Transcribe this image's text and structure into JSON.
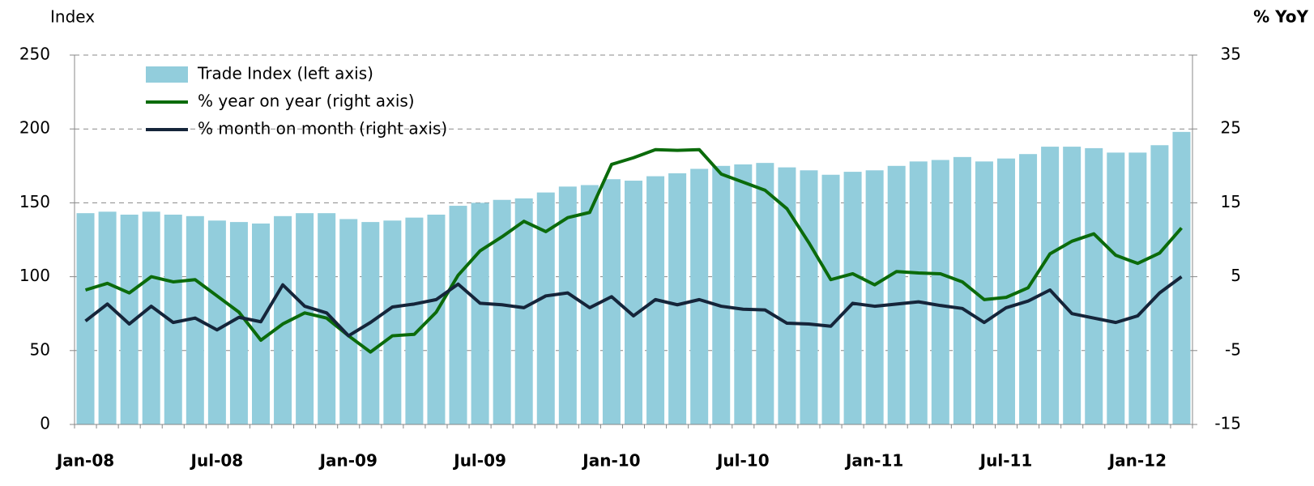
{
  "chart_data": {
    "type": "bar_line",
    "ylabel": "Index",
    "y2label": "% YoY",
    "categories": [
      "Jan-08",
      null,
      null,
      null,
      null,
      null,
      "Jul-08",
      null,
      null,
      null,
      null,
      null,
      "Jan-09",
      null,
      null,
      null,
      null,
      null,
      "Jul-09",
      null,
      null,
      null,
      null,
      null,
      "Jan-10",
      null,
      null,
      null,
      null,
      null,
      "Jul-10",
      null,
      null,
      null,
      null,
      null,
      "Jan-11",
      null,
      null,
      null,
      null,
      null,
      "Jul-11",
      null,
      null,
      null,
      null,
      null,
      "Jan-12",
      null,
      null
    ],
    "series": [
      {
        "name": "Trade Index (left axis)",
        "kind": "bar",
        "color": "#92cddc",
        "values": [
          143,
          144,
          142,
          144,
          142,
          141,
          138,
          137,
          136,
          141,
          143,
          143,
          139,
          137,
          138,
          140,
          142,
          148,
          150,
          152,
          153,
          157,
          161,
          162,
          166,
          165,
          168,
          170,
          173,
          175,
          176,
          177,
          174,
          172,
          169,
          171,
          172,
          175,
          178,
          179,
          181,
          178,
          180,
          183,
          188,
          188,
          187,
          184,
          184,
          189,
          198
        ]
      },
      {
        "name": "% year on year (right axis)",
        "kind": "line",
        "axis": "y2",
        "color": "#0b6b0b",
        "values": [
          3.2,
          4.1,
          2.8,
          5,
          4.3,
          4.6,
          2.4,
          0.2,
          -3.6,
          -1.4,
          0.1,
          -0.6,
          -3,
          -5.2,
          -3,
          -2.8,
          0.2,
          5.2,
          8.5,
          10.4,
          12.5,
          11.1,
          13,
          13.7,
          20.2,
          21.1,
          22.2,
          22.1,
          22.2,
          18.9,
          17.8,
          16.7,
          14.2,
          9.6,
          4.6,
          5.4,
          3.9,
          5.7,
          5.5,
          5.4,
          4.3,
          1.9,
          2.2,
          3.5,
          8.1,
          9.8,
          10.8,
          7.9,
          6.8,
          8.2,
          11.6
        ]
      },
      {
        "name": "% month on month (right axis)",
        "kind": "line",
        "axis": "y2",
        "color": "#15253a",
        "values": [
          -1,
          1.3,
          -1.4,
          1,
          -1.2,
          -0.6,
          -2.2,
          -0.5,
          -1.1,
          3.9,
          1,
          0.1,
          -3,
          -1.2,
          0.9,
          1.3,
          1.9,
          4,
          1.4,
          1.2,
          0.8,
          2.4,
          2.8,
          0.8,
          2.3,
          -0.3,
          1.9,
          1.2,
          1.9,
          1,
          0.6,
          0.5,
          -1.3,
          -1.4,
          -1.7,
          1.4,
          1,
          1.3,
          1.6,
          1.1,
          0.7,
          -1.2,
          0.8,
          1.7,
          3.2,
          0,
          -0.6,
          -1.2,
          -0.3,
          2.8,
          5
        ]
      }
    ],
    "ylim": [
      0,
      250
    ],
    "yticks": [
      0,
      50,
      100,
      150,
      200,
      250
    ],
    "y2lim": [
      -15,
      35
    ],
    "y2ticks": [
      -15,
      -5,
      5,
      15,
      25,
      35
    ],
    "grid": true,
    "legend": "top-left"
  }
}
